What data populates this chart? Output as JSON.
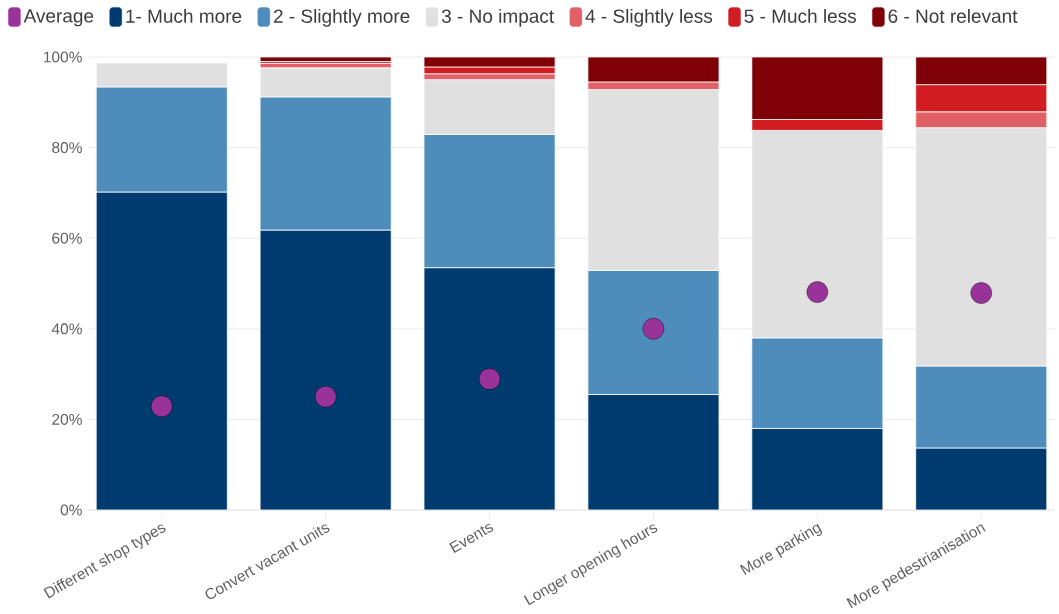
{
  "chart_data": {
    "type": "bar",
    "stacked": true,
    "categories": [
      "Different shop types",
      "Convert vacant units",
      "Events",
      "Longer opening hours",
      "More parking",
      "More pedestrianisation"
    ],
    "series": [
      {
        "name": "Average",
        "type": "scatter",
        "color": "#993399",
        "x": [
          "Different shop types",
          "Convert vacant units",
          "Events",
          "Longer opening hours",
          "More parking",
          "More pedestrianisation"
        ],
        "values": [
          22.9,
          25.0,
          28.9,
          40.0,
          48.1,
          47.9
        ]
      },
      {
        "name": "1- Much more",
        "color": "#003b70",
        "values": [
          70.2,
          61.8,
          53.5,
          25.5,
          18.0,
          13.7
        ]
      },
      {
        "name": "2 - Slightly more",
        "color": "#4e8cbc",
        "values": [
          23.2,
          29.4,
          29.4,
          27.4,
          20.0,
          18.1
        ]
      },
      {
        "name": "3 - No impact",
        "color": "#e0e0e0",
        "values": [
          5.3,
          6.4,
          12.1,
          39.9,
          45.8,
          52.6
        ]
      },
      {
        "name": "4 - Slightly less",
        "color": "#e06066",
        "values": [
          null,
          1.0,
          1.3,
          1.7,
          null,
          3.5
        ]
      },
      {
        "name": "5 - Much less",
        "color": "#d11c22",
        "values": [
          null,
          0.4,
          1.5,
          null,
          2.4,
          6.0
        ]
      },
      {
        "name": "6 - Not relevant",
        "color": "#800008",
        "values": [
          null,
          1.0,
          2.2,
          5.5,
          13.8,
          6.1
        ]
      }
    ],
    "ylim": [
      0,
      100
    ],
    "yticks": [
      {
        "value": 0,
        "label": "0%"
      },
      {
        "value": 20,
        "label": "20%"
      },
      {
        "value": 40,
        "label": "40%"
      },
      {
        "value": 60,
        "label": "60%"
      },
      {
        "value": 80,
        "label": "80%"
      },
      {
        "value": 100,
        "label": "100%"
      }
    ],
    "grid": "y",
    "legend": "top",
    "marker": "circle"
  }
}
